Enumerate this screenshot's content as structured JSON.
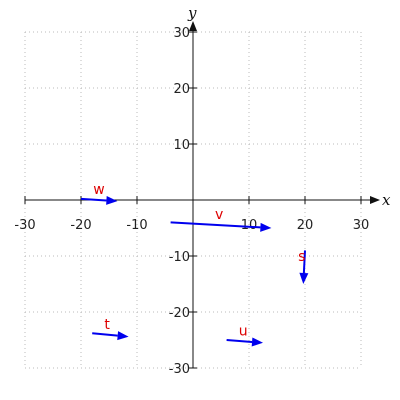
{
  "chart_data": {
    "type": "vector_plot",
    "xlabel": "x",
    "ylabel": "y",
    "xlim": [
      -30,
      30
    ],
    "ylim": [
      -30,
      30
    ],
    "xticks": [
      -30,
      -20,
      -10,
      10,
      20,
      30
    ],
    "yticks": [
      30,
      20,
      10,
      -10,
      -20,
      -30
    ],
    "grid": true,
    "vectors": [
      {
        "label": "w",
        "start": [
          -20,
          0.2
        ],
        "end": [
          -13.5,
          -0.2
        ]
      },
      {
        "label": "v",
        "start": [
          -4,
          -4
        ],
        "end": [
          14,
          -5
        ]
      },
      {
        "label": "s",
        "start": [
          20,
          -9
        ],
        "end": [
          19.7,
          -15
        ]
      },
      {
        "label": "t",
        "start": [
          -18,
          -23.8
        ],
        "end": [
          -11.5,
          -24.4
        ]
      },
      {
        "label": "u",
        "start": [
          6,
          -25
        ],
        "end": [
          12.5,
          -25.5
        ]
      }
    ]
  },
  "colors": {
    "vector": "#0000ee",
    "label": "#dd0000",
    "grid": "#bbbbbb",
    "axis": "#111111"
  }
}
